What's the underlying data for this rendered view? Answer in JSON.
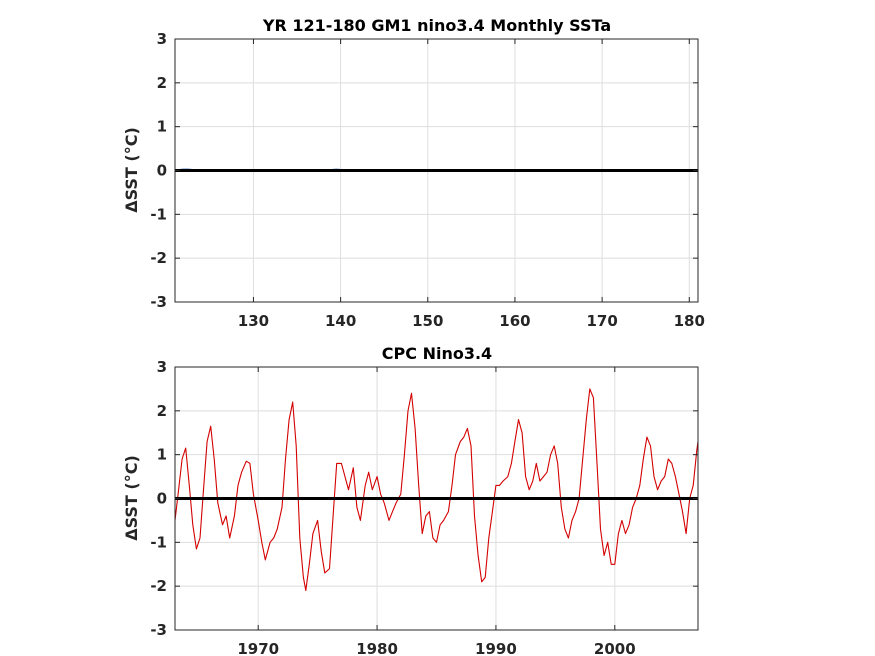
{
  "figure": {
    "background": "#ffffff",
    "grid_color": "#dedede",
    "axes_color": "#262626",
    "zero_line_color": "#000000"
  },
  "chart_data": [
    {
      "type": "line",
      "title": "YR 121-180 GM1 nino3.4 Monthly SSTa",
      "ylabel": "ΔSST (°C)",
      "xlabel": "",
      "xlim": [
        121,
        181
      ],
      "ylim": [
        -3,
        3
      ],
      "xticks": [
        130,
        140,
        150,
        160,
        170,
        180
      ],
      "yticks": [
        -3,
        -2,
        -1,
        0,
        1,
        2,
        3
      ],
      "grid": true,
      "reference_line": 0,
      "series": [
        {
          "color": "#1f5fbf",
          "x": [
            121,
            121.5,
            122,
            122.5,
            123,
            124,
            126,
            128,
            130,
            132,
            134,
            136,
            138,
            139,
            139.5,
            140,
            140.5,
            141,
            142,
            145,
            150,
            155,
            160,
            165,
            168,
            170,
            175,
            179,
            181
          ],
          "values": [
            0,
            0.02,
            0.03,
            0.03,
            0.02,
            0.01,
            0,
            0,
            0.01,
            0,
            0,
            0,
            0.01,
            0.02,
            0.03,
            0.02,
            0.02,
            0.01,
            0,
            0,
            0,
            0,
            0,
            0,
            -0.01,
            0,
            0,
            -0.01,
            0
          ]
        }
      ]
    },
    {
      "type": "line",
      "title": "CPC Nino3.4",
      "ylabel": "ΔSST (°C)",
      "xlabel": "",
      "xlim": [
        1963,
        2007
      ],
      "ylim": [
        -3,
        3
      ],
      "xticks": [
        1970,
        1980,
        1990,
        2000
      ],
      "yticks": [
        -3,
        -2,
        -1,
        0,
        1,
        2,
        3
      ],
      "grid": true,
      "reference_line": 0,
      "series": [
        {
          "color": "#d40000",
          "x": [
            1963.0,
            1963.3,
            1963.6,
            1963.9,
            1964.2,
            1964.5,
            1964.8,
            1965.1,
            1965.4,
            1965.7,
            1966.0,
            1966.3,
            1966.6,
            1967.0,
            1967.3,
            1967.6,
            1968.0,
            1968.3,
            1968.6,
            1969.0,
            1969.3,
            1969.6,
            1970.0,
            1970.3,
            1970.6,
            1971.0,
            1971.3,
            1971.6,
            1972.0,
            1972.3,
            1972.6,
            1972.9,
            1973.2,
            1973.5,
            1973.8,
            1974.0,
            1974.3,
            1974.6,
            1975.0,
            1975.3,
            1975.6,
            1976.0,
            1976.3,
            1976.6,
            1977.0,
            1977.3,
            1977.6,
            1978.0,
            1978.3,
            1978.6,
            1979.0,
            1979.3,
            1979.6,
            1980.0,
            1980.3,
            1980.6,
            1981.0,
            1981.3,
            1981.6,
            1982.0,
            1982.3,
            1982.6,
            1982.9,
            1983.2,
            1983.5,
            1983.8,
            1984.1,
            1984.4,
            1984.7,
            1985.0,
            1985.3,
            1985.6,
            1986.0,
            1986.3,
            1986.6,
            1987.0,
            1987.3,
            1987.6,
            1987.9,
            1988.2,
            1988.5,
            1988.8,
            1989.1,
            1989.4,
            1989.7,
            1990.0,
            1990.3,
            1990.6,
            1991.0,
            1991.3,
            1991.6,
            1991.9,
            1992.2,
            1992.5,
            1992.8,
            1993.1,
            1993.4,
            1993.7,
            1994.0,
            1994.3,
            1994.6,
            1994.9,
            1995.2,
            1995.5,
            1995.8,
            1996.1,
            1996.4,
            1996.7,
            1997.0,
            1997.3,
            1997.6,
            1997.9,
            1998.2,
            1998.5,
            1998.8,
            1999.1,
            1999.4,
            1999.7,
            2000.0,
            2000.3,
            2000.6,
            2000.9,
            2001.2,
            2001.5,
            2001.8,
            2002.1,
            2002.4,
            2002.7,
            2003.0,
            2003.3,
            2003.6,
            2003.9,
            2004.2,
            2004.5,
            2004.8,
            2005.1,
            2005.4,
            2005.7,
            2006.0,
            2006.3,
            2006.6,
            2006.9,
            2007.0
          ],
          "values": [
            -0.5,
            0.2,
            0.9,
            1.15,
            0.3,
            -0.6,
            -1.15,
            -0.9,
            0.2,
            1.3,
            1.65,
            0.9,
            -0.1,
            -0.6,
            -0.4,
            -0.9,
            -0.4,
            0.3,
            0.6,
            0.85,
            0.8,
            0.1,
            -0.5,
            -1.0,
            -1.4,
            -1.0,
            -0.9,
            -0.7,
            -0.2,
            0.9,
            1.8,
            2.2,
            1.2,
            -0.9,
            -1.8,
            -2.1,
            -1.5,
            -0.8,
            -0.5,
            -1.2,
            -1.7,
            -1.6,
            -0.4,
            0.8,
            0.8,
            0.5,
            0.2,
            0.7,
            -0.2,
            -0.5,
            0.3,
            0.6,
            0.2,
            0.5,
            0.1,
            -0.1,
            -0.5,
            -0.3,
            -0.1,
            0.1,
            1.0,
            2.0,
            2.4,
            1.6,
            0.3,
            -0.8,
            -0.4,
            -0.3,
            -0.9,
            -1.0,
            -0.6,
            -0.5,
            -0.3,
            0.3,
            1.0,
            1.3,
            1.4,
            1.6,
            1.2,
            -0.4,
            -1.3,
            -1.9,
            -1.8,
            -0.9,
            -0.3,
            0.3,
            0.3,
            0.4,
            0.5,
            0.8,
            1.3,
            1.8,
            1.5,
            0.5,
            0.2,
            0.4,
            0.8,
            0.4,
            0.5,
            0.6,
            1.0,
            1.2,
            0.8,
            -0.2,
            -0.7,
            -0.9,
            -0.5,
            -0.3,
            0.0,
            0.9,
            1.8,
            2.5,
            2.3,
            0.8,
            -0.7,
            -1.3,
            -1.0,
            -1.5,
            -1.5,
            -0.8,
            -0.5,
            -0.8,
            -0.6,
            -0.2,
            0.0,
            0.3,
            0.9,
            1.4,
            1.2,
            0.5,
            0.2,
            0.4,
            0.5,
            0.9,
            0.8,
            0.5,
            0.1,
            -0.3,
            -0.8,
            0.0,
            0.3,
            1.1,
            1.3
          ]
        }
      ]
    }
  ]
}
